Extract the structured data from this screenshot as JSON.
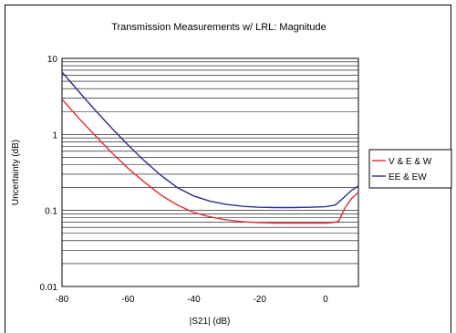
{
  "chart_data": {
    "type": "line",
    "title": "Transmission Measurements w/ LRL: Magnitude",
    "xlabel": "|S21| (dB)",
    "ylabel": "Uncertainty (dB)",
    "xlim": [
      -80,
      10
    ],
    "ylim": [
      0.01,
      10
    ],
    "yscale": "log",
    "xticks": [
      -80,
      -60,
      -40,
      -20,
      0
    ],
    "yticks": [
      0.01,
      0.1,
      1,
      10
    ],
    "ytick_labels": [
      "0.01",
      "0.1",
      "1",
      "10"
    ],
    "grid": "horizontal minor and major",
    "legend_position": "right",
    "series": [
      {
        "name": "V & E & W",
        "color": "#e8292b",
        "x": [
          -80,
          -75,
          -70,
          -65,
          -60,
          -55,
          -50,
          -45,
          -40,
          -35,
          -30,
          -25,
          -20,
          -15,
          -10,
          -5,
          0,
          2,
          4,
          6,
          8,
          10
        ],
        "y": [
          2.9,
          1.65,
          0.97,
          0.58,
          0.36,
          0.235,
          0.16,
          0.118,
          0.094,
          0.082,
          0.075,
          0.071,
          0.069,
          0.068,
          0.068,
          0.068,
          0.068,
          0.069,
          0.072,
          0.11,
          0.145,
          0.172
        ]
      },
      {
        "name": "EE & EW",
        "color": "#2a2f8f",
        "x": [
          -80,
          -75,
          -70,
          -65,
          -60,
          -55,
          -50,
          -45,
          -40,
          -35,
          -30,
          -25,
          -20,
          -15,
          -10,
          -5,
          0,
          3,
          5,
          8,
          10
        ],
        "y": [
          6.6,
          3.7,
          2.1,
          1.22,
          0.73,
          0.45,
          0.29,
          0.2,
          0.155,
          0.132,
          0.12,
          0.113,
          0.11,
          0.109,
          0.109,
          0.11,
          0.112,
          0.118,
          0.14,
          0.185,
          0.21
        ]
      }
    ]
  }
}
